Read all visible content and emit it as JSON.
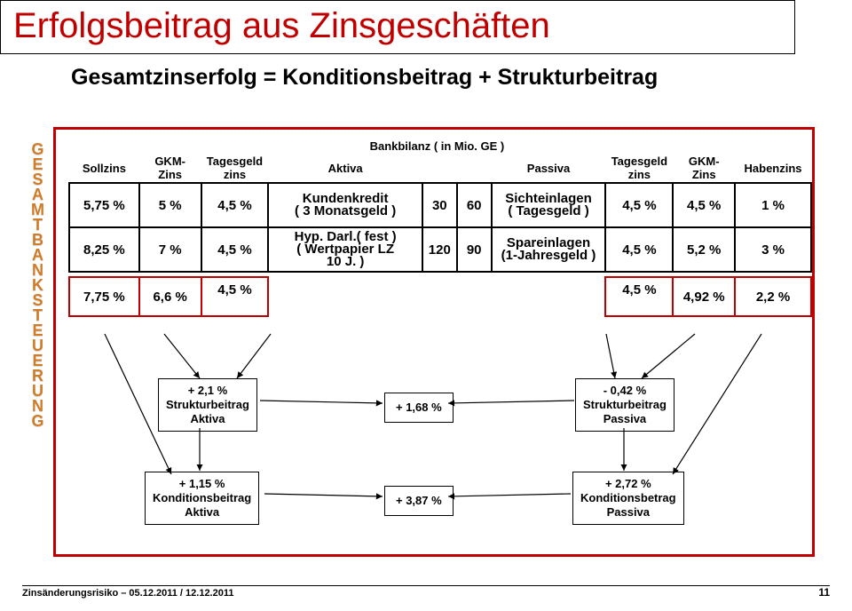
{
  "title": "Erfolgsbeitrag aus Zinsgeschäften",
  "subtitle": "Gesamtzinserfolg = Konditionsbeitrag + Strukturbeitrag",
  "side_label_chars": [
    "G",
    "E",
    "S",
    "A",
    "M",
    "T",
    "B",
    "A",
    "N",
    "K",
    "S",
    "T",
    "E",
    "U",
    "E",
    "R",
    "U",
    "N",
    "G"
  ],
  "header": {
    "bankbilanz": "Bankbilanz ( in Mio. GE )",
    "sollzins": "Sollzins",
    "gkm_zins_left": "GKM-\nZins",
    "tagesgeld_left": "Tagesgeld\nzins",
    "aktiva": "Aktiva",
    "passiva": "Passiva",
    "tagesgeld_right": "Tagesgeld\nzins",
    "gkm_zins_right": "GKM-\nZins",
    "habenzins": "Habenzins"
  },
  "rows": [
    {
      "soll": "5,75 %",
      "gkm_l": "5 %",
      "tg_l": "4,5 %",
      "akt_text": "Kundenkredit\n( 3 Monatsgeld )",
      "akt_num": "30",
      "pas_num": "60",
      "pas_text": "Sichteinlagen\n( Tagesgeld )",
      "tg_r": "4,5 %",
      "gkm_r": "4,5 %",
      "hab": "1 %"
    },
    {
      "soll": "8,25 %",
      "gkm_l": "7 %",
      "tg_l": "4,5 %",
      "akt_text": "Hyp. Darl.( fest )\n( Wertpapier LZ\n10 J. )",
      "akt_num": "120",
      "pas_num": "90",
      "pas_text": "Spareinlagen\n(1-Jahresgeld )",
      "tg_r": "4,5 %",
      "gkm_r": "5,2 %",
      "hab": "3 %"
    }
  ],
  "sum": {
    "soll": "7,75 %",
    "gkm_l": "6,6 %",
    "tg_l": "4,5 %",
    "tg_r": "4,5 %",
    "gkm_r": "4,92 %",
    "hab": "2,2 %"
  },
  "boxes": {
    "struktur_aktiva": "+ 2,1 %\nStrukturbeitrag\nAktiva",
    "mid1": "+ 1,68 %",
    "struktur_passiva": "- 0,42 %\nStrukturbeitrag\nPassiva",
    "kond_aktiva": "+ 1,15 %\nKonditionsbeitrag\nAktiva",
    "mid2": "+ 3,87 %",
    "kond_passiva": "+ 2,72 %\nKonditionsbetrag\nPassiva"
  },
  "footer": "Zinsänderungsrisiko – 05.12.2011 / 12.12.2011",
  "pagenum": "11",
  "colors": {
    "title": "#c00000",
    "frame": "#c00000",
    "side_label": "#d07c28"
  }
}
